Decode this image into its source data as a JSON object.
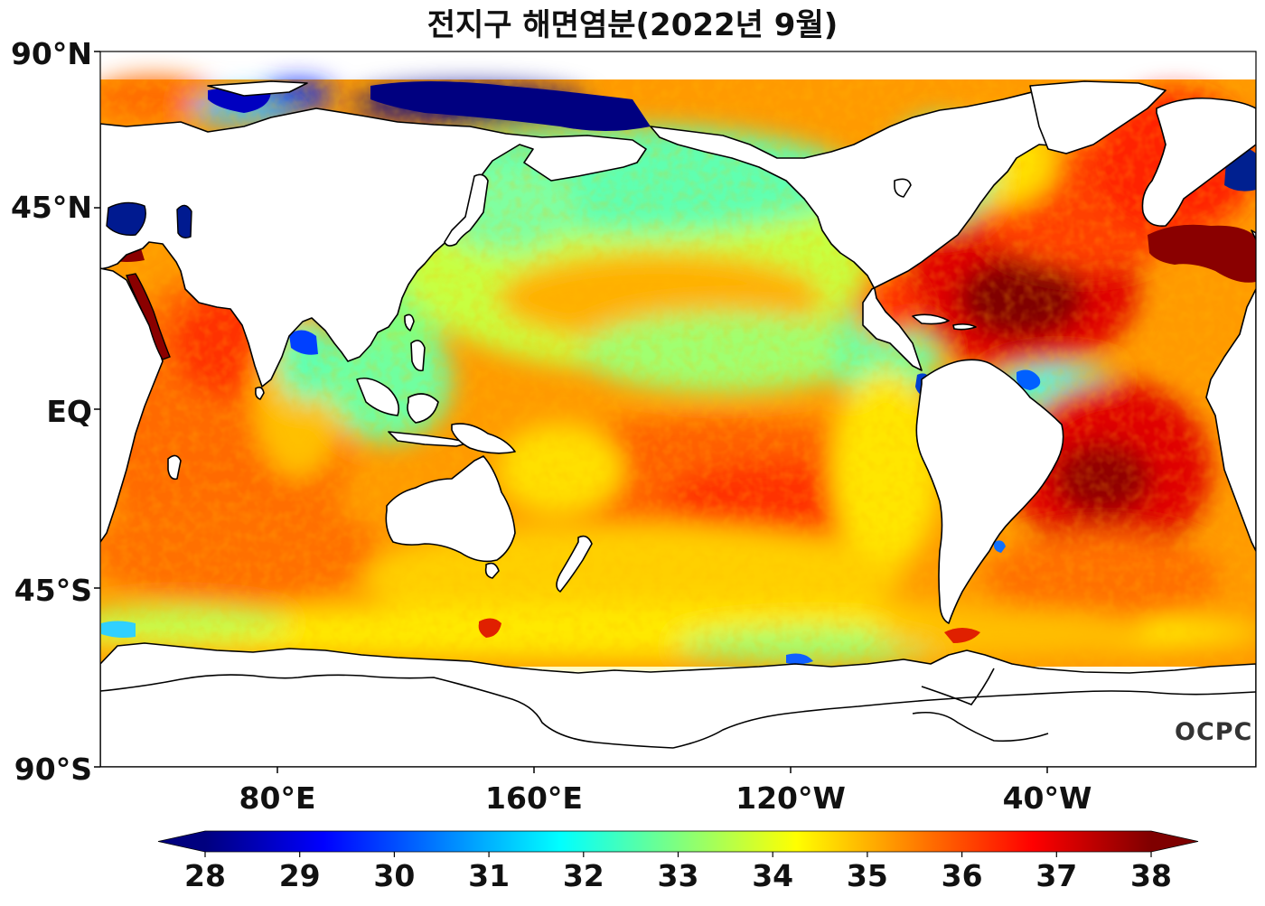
{
  "title": "전지구 해면염분(2022년 9월)",
  "lat_labels": [
    "90°N",
    "45°N",
    "EQ",
    "45°S",
    "90°S"
  ],
  "lon_labels": [
    "80°E",
    "160°E",
    "120°W",
    "40°W"
  ],
  "colorbar": {
    "ticks": [
      "28",
      "29",
      "30",
      "31",
      "32",
      "33",
      "34",
      "35",
      "36",
      "37",
      "38"
    ],
    "min": 28,
    "max": 38,
    "colors": [
      "#00007f",
      "#0000ff",
      "#007fff",
      "#00ffff",
      "#7fff7f",
      "#ffff00",
      "#ff7f00",
      "#ff0000",
      "#7f0000"
    ]
  },
  "logo": "OCPC",
  "colors": {
    "land": "#ffffff",
    "coastline": "#000000",
    "high_salinity": "#b00000",
    "mid_salinity": "#ffb000",
    "low_salinity": "#55ffb0"
  }
}
